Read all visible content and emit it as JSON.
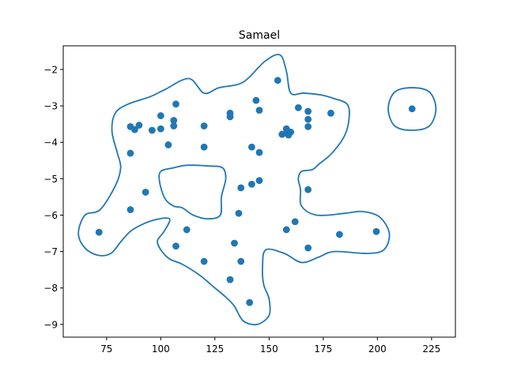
{
  "chart_data": {
    "type": "scatter",
    "title": "Samael",
    "xlabel": "",
    "ylabel": "",
    "xlim": [
      55,
      236
    ],
    "ylim": [
      -9.35,
      -1.35
    ],
    "x_ticks": [
      75,
      100,
      125,
      150,
      175,
      200,
      225
    ],
    "y_ticks": [
      -9,
      -8,
      -7,
      -6,
      -5,
      -4,
      -3,
      -2
    ],
    "x_tick_labels": [
      "75",
      "100",
      "125",
      "150",
      "175",
      "200",
      "225"
    ],
    "y_tick_labels": [
      "−9",
      "−8",
      "−7",
      "−6",
      "−5",
      "−4",
      "−3",
      "−2"
    ],
    "grid": false,
    "colors": {
      "series": "#1f77b4",
      "axes": "#000000",
      "background": "#ffffff"
    },
    "series": [
      {
        "kind": "points",
        "points": [
          [
            71.5,
            -6.47
          ],
          [
            86.0,
            -3.57
          ],
          [
            88.0,
            -3.65
          ],
          [
            90.0,
            -3.53
          ],
          [
            86.0,
            -4.3
          ],
          [
            86.0,
            -5.85
          ],
          [
            93.0,
            -5.37
          ],
          [
            96.0,
            -3.67
          ],
          [
            100.0,
            -3.27
          ],
          [
            100.0,
            -3.63
          ],
          [
            103.5,
            -4.07
          ],
          [
            106.0,
            -3.4
          ],
          [
            106.0,
            -3.55
          ],
          [
            107.0,
            -2.95
          ],
          [
            107.0,
            -6.85
          ],
          [
            112.0,
            -6.4
          ],
          [
            120.0,
            -3.55
          ],
          [
            120.0,
            -4.13
          ],
          [
            120.0,
            -7.27
          ],
          [
            132.0,
            -3.2
          ],
          [
            132.0,
            -3.3
          ],
          [
            132.0,
            -7.77
          ],
          [
            134.0,
            -6.77
          ],
          [
            136.0,
            -5.95
          ],
          [
            137.0,
            -5.25
          ],
          [
            137.0,
            -7.27
          ],
          [
            141.0,
            -8.4
          ],
          [
            142.0,
            -4.13
          ],
          [
            142.0,
            -5.15
          ],
          [
            144.0,
            -2.85
          ],
          [
            145.5,
            -3.12
          ],
          [
            145.5,
            -4.28
          ],
          [
            145.5,
            -5.05
          ],
          [
            154.0,
            -2.3
          ],
          [
            156.0,
            -3.78
          ],
          [
            158.0,
            -3.63
          ],
          [
            158.0,
            -3.75
          ],
          [
            159.0,
            -3.8
          ],
          [
            160.0,
            -3.72
          ],
          [
            158.0,
            -6.4
          ],
          [
            162.0,
            -6.18
          ],
          [
            163.5,
            -3.05
          ],
          [
            168.0,
            -3.15
          ],
          [
            168.0,
            -3.37
          ],
          [
            168.0,
            -3.57
          ],
          [
            168.0,
            -5.3
          ],
          [
            168.0,
            -6.9
          ],
          [
            178.5,
            -3.2
          ],
          [
            182.5,
            -6.53
          ],
          [
            199.5,
            -6.45
          ],
          [
            216.0,
            -3.08
          ]
        ]
      }
    ],
    "contours": [
      {
        "kind": "outer",
        "points": [
          [
            71,
            -7.1
          ],
          [
            65,
            -6.9
          ],
          [
            62,
            -6.5
          ],
          [
            65,
            -6.0
          ],
          [
            72,
            -5.85
          ],
          [
            79,
            -5.2
          ],
          [
            81.5,
            -4.7
          ],
          [
            80,
            -4.3
          ],
          [
            77.5,
            -3.7
          ],
          [
            79,
            -3.2
          ],
          [
            85,
            -2.95
          ],
          [
            95,
            -2.75
          ],
          [
            102,
            -2.55
          ],
          [
            113,
            -2.25
          ],
          [
            120,
            -2.65
          ],
          [
            127,
            -2.5
          ],
          [
            138,
            -2.35
          ],
          [
            148,
            -1.78
          ],
          [
            155,
            -1.6
          ],
          [
            158,
            -2.05
          ],
          [
            160,
            -2.65
          ],
          [
            166,
            -2.65
          ],
          [
            174,
            -2.7
          ],
          [
            180,
            -2.8
          ],
          [
            186,
            -2.95
          ],
          [
            187,
            -3.3
          ],
          [
            185,
            -3.8
          ],
          [
            179,
            -4.3
          ],
          [
            173,
            -4.6
          ],
          [
            170,
            -4.75
          ],
          [
            165,
            -4.8
          ],
          [
            163.5,
            -5.0
          ],
          [
            164.5,
            -5.3
          ],
          [
            165,
            -5.75
          ],
          [
            172,
            -6.0
          ],
          [
            185,
            -5.95
          ],
          [
            193,
            -5.9
          ],
          [
            201,
            -6.05
          ],
          [
            205.5,
            -6.5
          ],
          [
            203,
            -6.95
          ],
          [
            195,
            -7.05
          ],
          [
            180,
            -7.0
          ],
          [
            173,
            -7.15
          ],
          [
            165,
            -7.3
          ],
          [
            157,
            -7.05
          ],
          [
            148.5,
            -6.95
          ],
          [
            147,
            -7.4
          ],
          [
            147.5,
            -7.9
          ],
          [
            150,
            -8.3
          ],
          [
            150,
            -8.75
          ],
          [
            144.5,
            -9.0
          ],
          [
            138,
            -8.9
          ],
          [
            134,
            -8.5
          ],
          [
            130,
            -8.25
          ],
          [
            124,
            -7.95
          ],
          [
            118,
            -7.65
          ],
          [
            110,
            -7.35
          ],
          [
            104,
            -7.2
          ],
          [
            100,
            -6.95
          ],
          [
            98.5,
            -6.7
          ],
          [
            101.5,
            -6.45
          ],
          [
            104,
            -6.1
          ],
          [
            96,
            -6.15
          ],
          [
            87,
            -6.4
          ],
          [
            82,
            -6.7
          ],
          [
            77,
            -7.05
          ],
          [
            71,
            -7.1
          ]
        ]
      },
      {
        "kind": "hole",
        "points": [
          [
            106,
            -4.7
          ],
          [
            112,
            -4.63
          ],
          [
            122,
            -4.65
          ],
          [
            128.5,
            -4.7
          ],
          [
            130,
            -5.0
          ],
          [
            128,
            -5.5
          ],
          [
            127.5,
            -6.0
          ],
          [
            121.5,
            -6.1
          ],
          [
            115,
            -6.0
          ],
          [
            110,
            -5.8
          ],
          [
            106,
            -5.75
          ],
          [
            102,
            -5.55
          ],
          [
            99.5,
            -5.1
          ],
          [
            100,
            -4.8
          ],
          [
            106,
            -4.7
          ]
        ]
      },
      {
        "kind": "island",
        "points": [
          [
            216,
            -2.5
          ],
          [
            224,
            -2.62
          ],
          [
            227,
            -3.08
          ],
          [
            224,
            -3.55
          ],
          [
            216,
            -3.67
          ],
          [
            208,
            -3.55
          ],
          [
            205,
            -3.08
          ],
          [
            208,
            -2.62
          ],
          [
            216,
            -2.5
          ]
        ]
      }
    ]
  }
}
